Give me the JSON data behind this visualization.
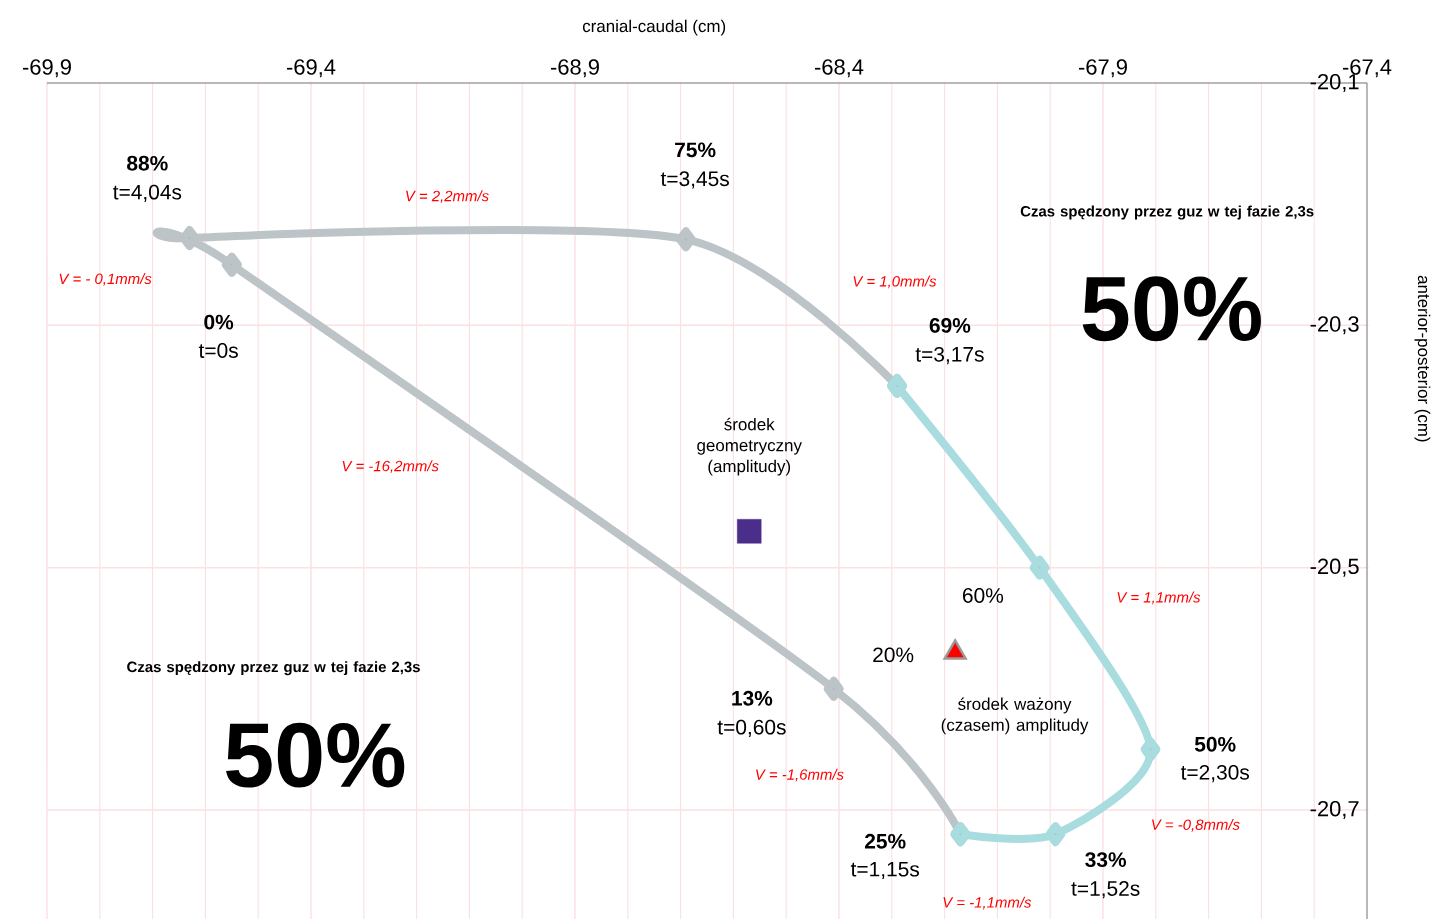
{
  "chart_data": {
    "type": "line",
    "xlabel": "cranial-caudal (cm)",
    "ylabel": "anterior-posterior (cm)",
    "xlim": [
      -69.9,
      -67.4
    ],
    "ylim": [
      -20.79,
      -20.1
    ],
    "xticks": [
      {
        "value": -69.9,
        "label": "-69,9"
      },
      {
        "value": -69.4,
        "label": "-69,4"
      },
      {
        "value": -68.9,
        "label": "-68,9"
      },
      {
        "value": -68.4,
        "label": "-68,4"
      },
      {
        "value": -67.9,
        "label": "-67,9"
      },
      {
        "value": -67.4,
        "label": "-67,4"
      }
    ],
    "yticks": [
      {
        "value": -20.1,
        "label": "-20,1"
      },
      {
        "value": -20.3,
        "label": "-20,3"
      },
      {
        "value": -20.5,
        "label": "-20,5"
      },
      {
        "value": -20.7,
        "label": "-20,7"
      }
    ],
    "grid": true,
    "marker": "diamond",
    "series": [
      {
        "color": "#bcc4c7",
        "x": [
          -68.29,
          -68.69,
          -69.63,
          -69.55,
          -68.41,
          -68.17
        ],
        "values": [
          -20.35,
          -20.229,
          -20.228,
          -20.25,
          -20.6,
          -20.72
        ]
      },
      {
        "color": "#a9dcdf",
        "x": [
          -68.17,
          -67.99,
          -67.81,
          -68.02,
          -68.29
        ],
        "values": [
          -20.72,
          -20.72,
          -20.65,
          -20.5,
          -20.35
        ]
      },
      {
        "type": "scatter",
        "color": "#4b2e8a",
        "marker": "square",
        "x": [
          -68.57
        ],
        "values": [
          -20.47
        ]
      },
      {
        "type": "scatter",
        "color": "#ff0000",
        "marker": "triangle",
        "x": [
          -68.18
        ],
        "values": [
          -20.57
        ]
      }
    ],
    "annotations": [
      "**88%**",
      "t=4,04s",
      "**75%**",
      "t=3,45s",
      "**69%**",
      "t=3,17s",
      "**0%**",
      "t=0s",
      "**13%**",
      "t=0,60s",
      "**25%**",
      "t=1,15s",
      "**33%**",
      "t=1,52s",
      "**50%**",
      "t=2,30s",
      "60%",
      "20%",
      "V = 2,2mm/s",
      "V = - 0,1mm/s",
      "V = 1,0mm/s",
      "V = -16,2mm/s",
      "V = 1,1mm/s",
      "V = -1,6mm/s",
      "V = -0,8mm/s",
      "V = -1,1mm/s",
      "środek geometryczny (amplitudy)",
      "środek ważony (czasem) amplitudy",
      "**Czas spędzony przez guz w tej fazie 2,3s**",
      "**50%**",
      "**Czas spędzony przez guz w tej fazie 2,3s**",
      "**50%**"
    ]
  }
}
